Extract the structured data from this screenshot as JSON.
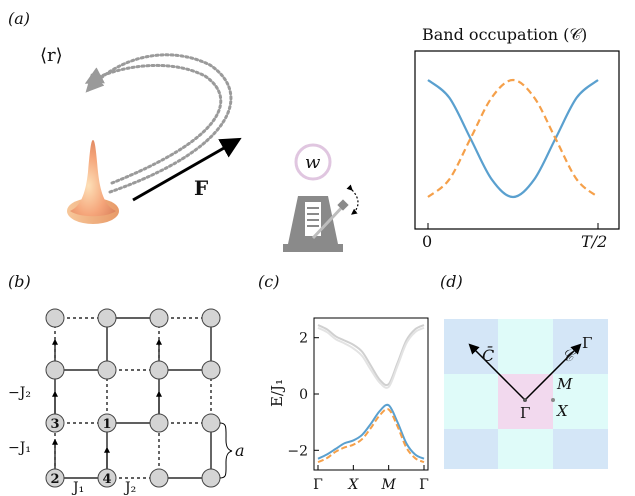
{
  "panels": {
    "a": {
      "label": "(a)",
      "position_label": "⟨r⟩",
      "force_label": "F",
      "metronome_label": "w",
      "chart_title": "Band occupation (𝒞)",
      "x_start": "0",
      "x_end": "T/2"
    },
    "b": {
      "label": "(b)",
      "site_labels": [
        "1",
        "2",
        "3",
        "4"
      ],
      "hopping_labels": {
        "j2_vertical": "−J₂",
        "j1_vertical": "−J₁",
        "j1_horizontal": "J₁",
        "j2_horizontal": "J₂"
      },
      "lattice_constant": "a"
    },
    "c": {
      "label": "(c)",
      "ylabel": "E/J₁",
      "yticks": [
        "2",
        "0",
        "−2"
      ],
      "xticks": [
        "Γ",
        "X",
        "M",
        "Γ"
      ]
    },
    "d": {
      "label": "(d)",
      "labels": {
        "cbar": "C̄",
        "c": "𝒞",
        "gamma_center": "Γ",
        "gamma_corner": "Γ",
        "m": "M",
        "x": "X"
      }
    }
  },
  "colors": {
    "blue": "#5aa0cf",
    "orange": "#f5a04a",
    "gray_band": "#cfcfcf",
    "node": "#d4d4d4"
  },
  "chart_data": [
    {
      "type": "line",
      "title": "Band occupation (𝒞)",
      "x_ticks": [
        "0",
        "T/2"
      ],
      "series": [
        {
          "color": "#5aa0cf",
          "style": "solid",
          "x": [
            0,
            0.125,
            0.25,
            0.375,
            0.5,
            0.625,
            0.75,
            0.875,
            1
          ],
          "values": [
            1,
            0.85,
            0.5,
            0.15,
            0,
            0.15,
            0.5,
            0.85,
            1
          ]
        },
        {
          "color": "#f5a04a",
          "style": "dashed",
          "x": [
            0,
            0.125,
            0.25,
            0.375,
            0.5,
            0.625,
            0.75,
            0.875,
            1
          ],
          "values": [
            0,
            0.15,
            0.5,
            0.85,
            1,
            0.85,
            0.5,
            0.15,
            0
          ]
        }
      ]
    },
    {
      "type": "line",
      "ylabel": "E/J₁",
      "ylim": [
        -2.7,
        2.7
      ],
      "x_ticks": [
        "Γ",
        "X",
        "M",
        "Γ"
      ],
      "series": [
        {
          "color": "#d0d0d0",
          "style": "solid",
          "x": [
            0,
            0.25,
            0.5,
            0.75,
            1,
            1.25,
            1.5,
            1.75,
            2,
            2.25,
            2.5,
            2.75,
            3
          ],
          "values": [
            2.45,
            2.3,
            2.05,
            1.9,
            1.75,
            1.5,
            1.0,
            0.5,
            0.35,
            1.1,
            1.9,
            2.3,
            2.45
          ]
        },
        {
          "color": "#e3e3e3",
          "style": "solid",
          "x": [
            0,
            0.25,
            0.5,
            0.75,
            1,
            1.25,
            1.5,
            1.75,
            2,
            2.25,
            2.5,
            2.75,
            3
          ],
          "values": [
            2.35,
            2.2,
            1.95,
            1.8,
            1.62,
            1.35,
            0.85,
            0.4,
            0.25,
            1.0,
            1.8,
            2.2,
            2.35
          ]
        },
        {
          "color": "#5aa0cf",
          "style": "solid",
          "x": [
            0,
            0.25,
            0.5,
            0.75,
            1,
            1.25,
            1.5,
            1.75,
            2,
            2.25,
            2.5,
            2.75,
            3
          ],
          "values": [
            -2.3,
            -2.15,
            -1.95,
            -1.75,
            -1.65,
            -1.45,
            -1.05,
            -0.6,
            -0.4,
            -1.0,
            -1.75,
            -2.15,
            -2.3
          ]
        },
        {
          "color": "#f5a04a",
          "style": "dashed",
          "x": [
            0,
            0.25,
            0.5,
            0.75,
            1,
            1.25,
            1.5,
            1.75,
            2,
            2.25,
            2.5,
            2.75,
            3
          ],
          "values": [
            -2.42,
            -2.28,
            -2.05,
            -1.9,
            -1.8,
            -1.6,
            -1.2,
            -0.75,
            -0.55,
            -1.15,
            -1.9,
            -2.28,
            -2.42
          ]
        }
      ]
    }
  ]
}
